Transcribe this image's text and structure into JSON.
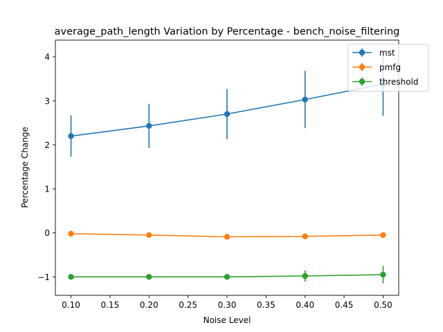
{
  "chart_data": {
    "type": "line",
    "title": "average_path_length Variation by Percentage - bench_noise_filtering",
    "xlabel": "Noise Level",
    "ylabel": "Percentage Change",
    "x": [
      0.1,
      0.2,
      0.3,
      0.4,
      0.5
    ],
    "xlim": [
      0.08,
      0.52
    ],
    "ylim": [
      -1.42,
      4.38
    ],
    "xticks": [
      0.1,
      0.15,
      0.2,
      0.25,
      0.3,
      0.35,
      0.4,
      0.45,
      0.5
    ],
    "xtick_labels": [
      "0.10",
      "0.15",
      "0.20",
      "0.25",
      "0.30",
      "0.35",
      "0.40",
      "0.45",
      "0.50"
    ],
    "yticks": [
      -1,
      0,
      1,
      2,
      3,
      4
    ],
    "ytick_labels": [
      "−1",
      "0",
      "1",
      "2",
      "3",
      "4"
    ],
    "grid": false,
    "legend_position": "top-right",
    "series": [
      {
        "name": "mst",
        "color": "#1f77b4",
        "values": [
          2.2,
          2.43,
          2.7,
          3.03,
          3.38
        ],
        "error": [
          0.47,
          0.5,
          0.57,
          0.65,
          0.72
        ]
      },
      {
        "name": "pmfg",
        "color": "#ff7f0e",
        "values": [
          -0.02,
          -0.05,
          -0.09,
          -0.08,
          -0.05
        ],
        "error": [
          0.03,
          0.03,
          0.03,
          0.03,
          0.04
        ]
      },
      {
        "name": "threshold",
        "color": "#2ca02c",
        "values": [
          -1.0,
          -1.0,
          -1.0,
          -0.98,
          -0.95
        ],
        "error": [
          0.02,
          0.02,
          0.02,
          0.13,
          0.2
        ]
      }
    ]
  }
}
